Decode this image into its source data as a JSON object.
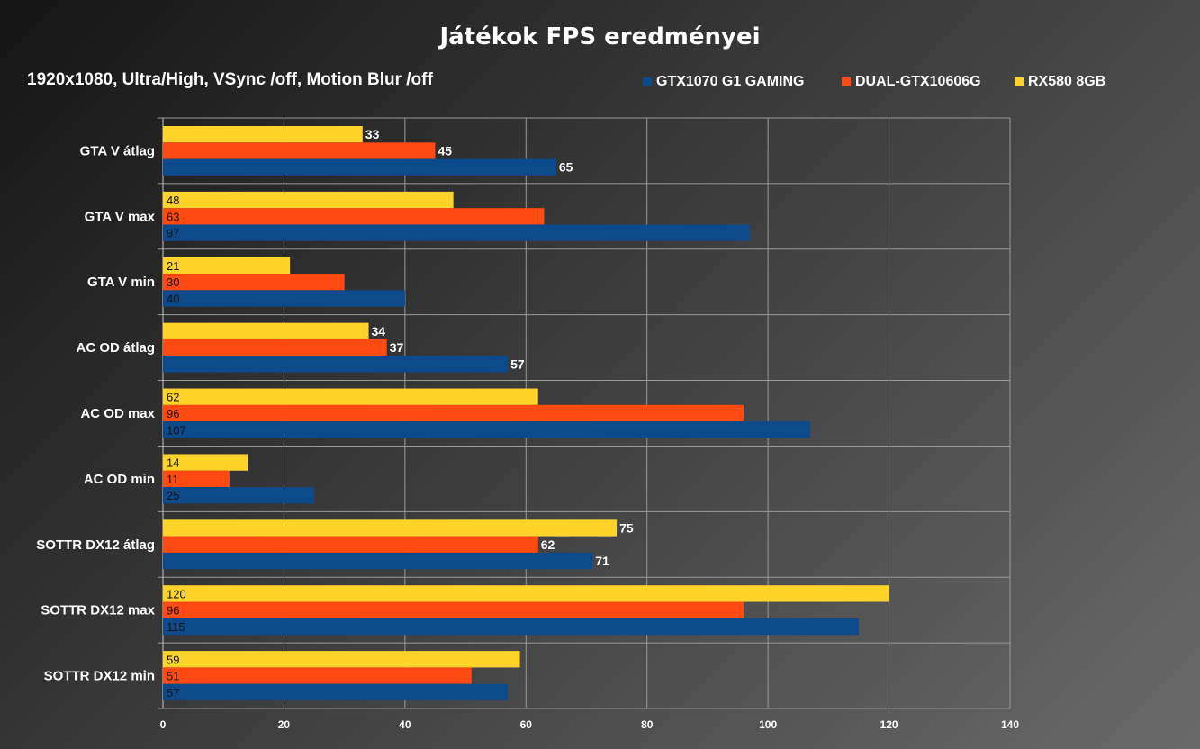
{
  "chart_data": {
    "type": "bar",
    "orientation": "horizontal",
    "title": "Játékok FPS eredményei",
    "subtitle": "1920x1080, Ultra/High, VSync /off, Motion Blur /off",
    "categories": [
      "GTA V átlag",
      "GTA V max",
      "GTA V min",
      "AC OD átlag",
      "AC OD max",
      "AC OD min",
      "SOTTR DX12 átlag",
      "SOTTR DX12 max",
      "SOTTR DX12 min"
    ],
    "series": [
      {
        "name": "GTX1070 G1 GAMING",
        "color": "#0d4a8c",
        "values": [
          65,
          97,
          40,
          57,
          107,
          25,
          71,
          115,
          57
        ]
      },
      {
        "name": "DUAL-GTX10606G",
        "color": "#ff4a12",
        "values": [
          45,
          63,
          30,
          37,
          96,
          11,
          62,
          96,
          51
        ]
      },
      {
        "name": "RX580 8GB",
        "color": "#ffd42a",
        "values": [
          33,
          48,
          21,
          34,
          62,
          14,
          75,
          120,
          59
        ]
      }
    ],
    "label_style": [
      "outside",
      "inside",
      "inside",
      "outside",
      "inside",
      "inside",
      "outside",
      "inside",
      "inside"
    ],
    "xlim": [
      0,
      140
    ],
    "x_ticks": [
      0,
      20,
      40,
      60,
      80,
      100,
      120,
      140
    ],
    "grid": true,
    "legend_position": "top-right"
  }
}
